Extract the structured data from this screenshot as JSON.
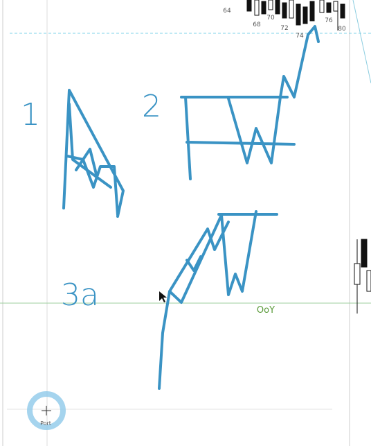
{
  "axis_labels": [
    "64",
    "68",
    "70",
    "72",
    "74",
    "76",
    "80"
  ],
  "annotations": [
    "1",
    "2",
    "3a"
  ],
  "line_label": "OoY",
  "cursor_label": "Port"
}
